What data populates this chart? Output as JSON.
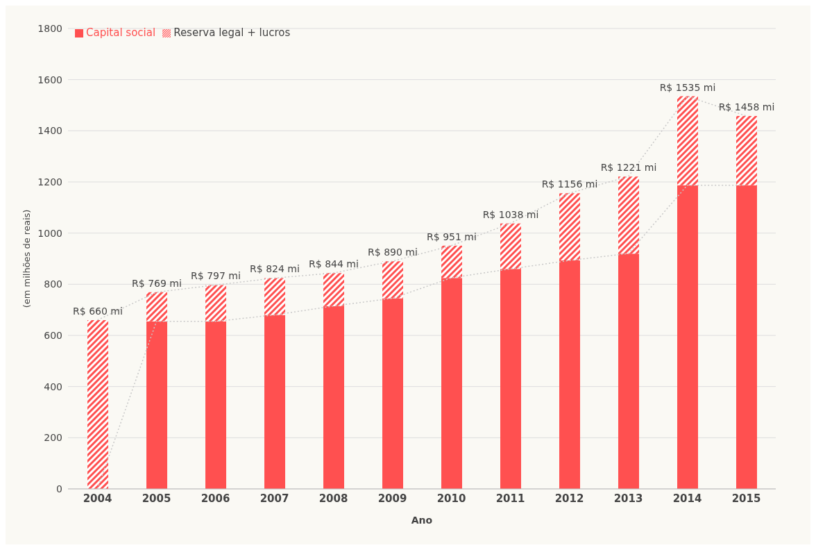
{
  "chart_data": {
    "type": "bar",
    "stacked": true,
    "xlabel": "Ano",
    "ylabel": "(em milhões de reais)",
    "categories": [
      "2004",
      "2005",
      "2006",
      "2007",
      "2008",
      "2009",
      "2010",
      "2011",
      "2012",
      "2013",
      "2014",
      "2015"
    ],
    "series": [
      {
        "name": "Capital social",
        "color": "#ff5050",
        "values": [
          0,
          655,
          655,
          680,
          715,
          745,
          825,
          860,
          893,
          920,
          1187,
          1187
        ]
      },
      {
        "name": "Reserva legal + lucros",
        "color": "#ff5050",
        "values": [
          660,
          114,
          142,
          144,
          129,
          145,
          126,
          178,
          263,
          301,
          348,
          271
        ]
      },
      {
        "type": "line",
        "color": "#c8c8c8",
        "line_style": "dotted",
        "marker": "none",
        "values": [
          0,
          655,
          655,
          680,
          715,
          745,
          825,
          860,
          893,
          920,
          1187,
          1187
        ]
      },
      {
        "type": "line",
        "color": "#c8c8c8",
        "line_style": "dotted",
        "marker": "none",
        "values": [
          660,
          769,
          797,
          824,
          844,
          890,
          951,
          1038,
          1156,
          1221,
          1535,
          1458
        ]
      }
    ],
    "totals": [
      "R$ 660 mi",
      "R$ 769 mi",
      "R$ 797 mi",
      "R$ 824 mi",
      "R$ 844 mi",
      "R$ 890 mi",
      "R$ 951 mi",
      "R$ 1038 mi",
      "R$ 1156 mi",
      "R$ 1221 mi",
      "R$ 1535 mi",
      "R$ 1458 mi"
    ],
    "ylim": [
      0,
      1800
    ],
    "yticks": [
      0,
      200,
      400,
      600,
      800,
      1000,
      1200,
      1400,
      1600,
      1800
    ],
    "grid": "y",
    "legend": "top left"
  }
}
